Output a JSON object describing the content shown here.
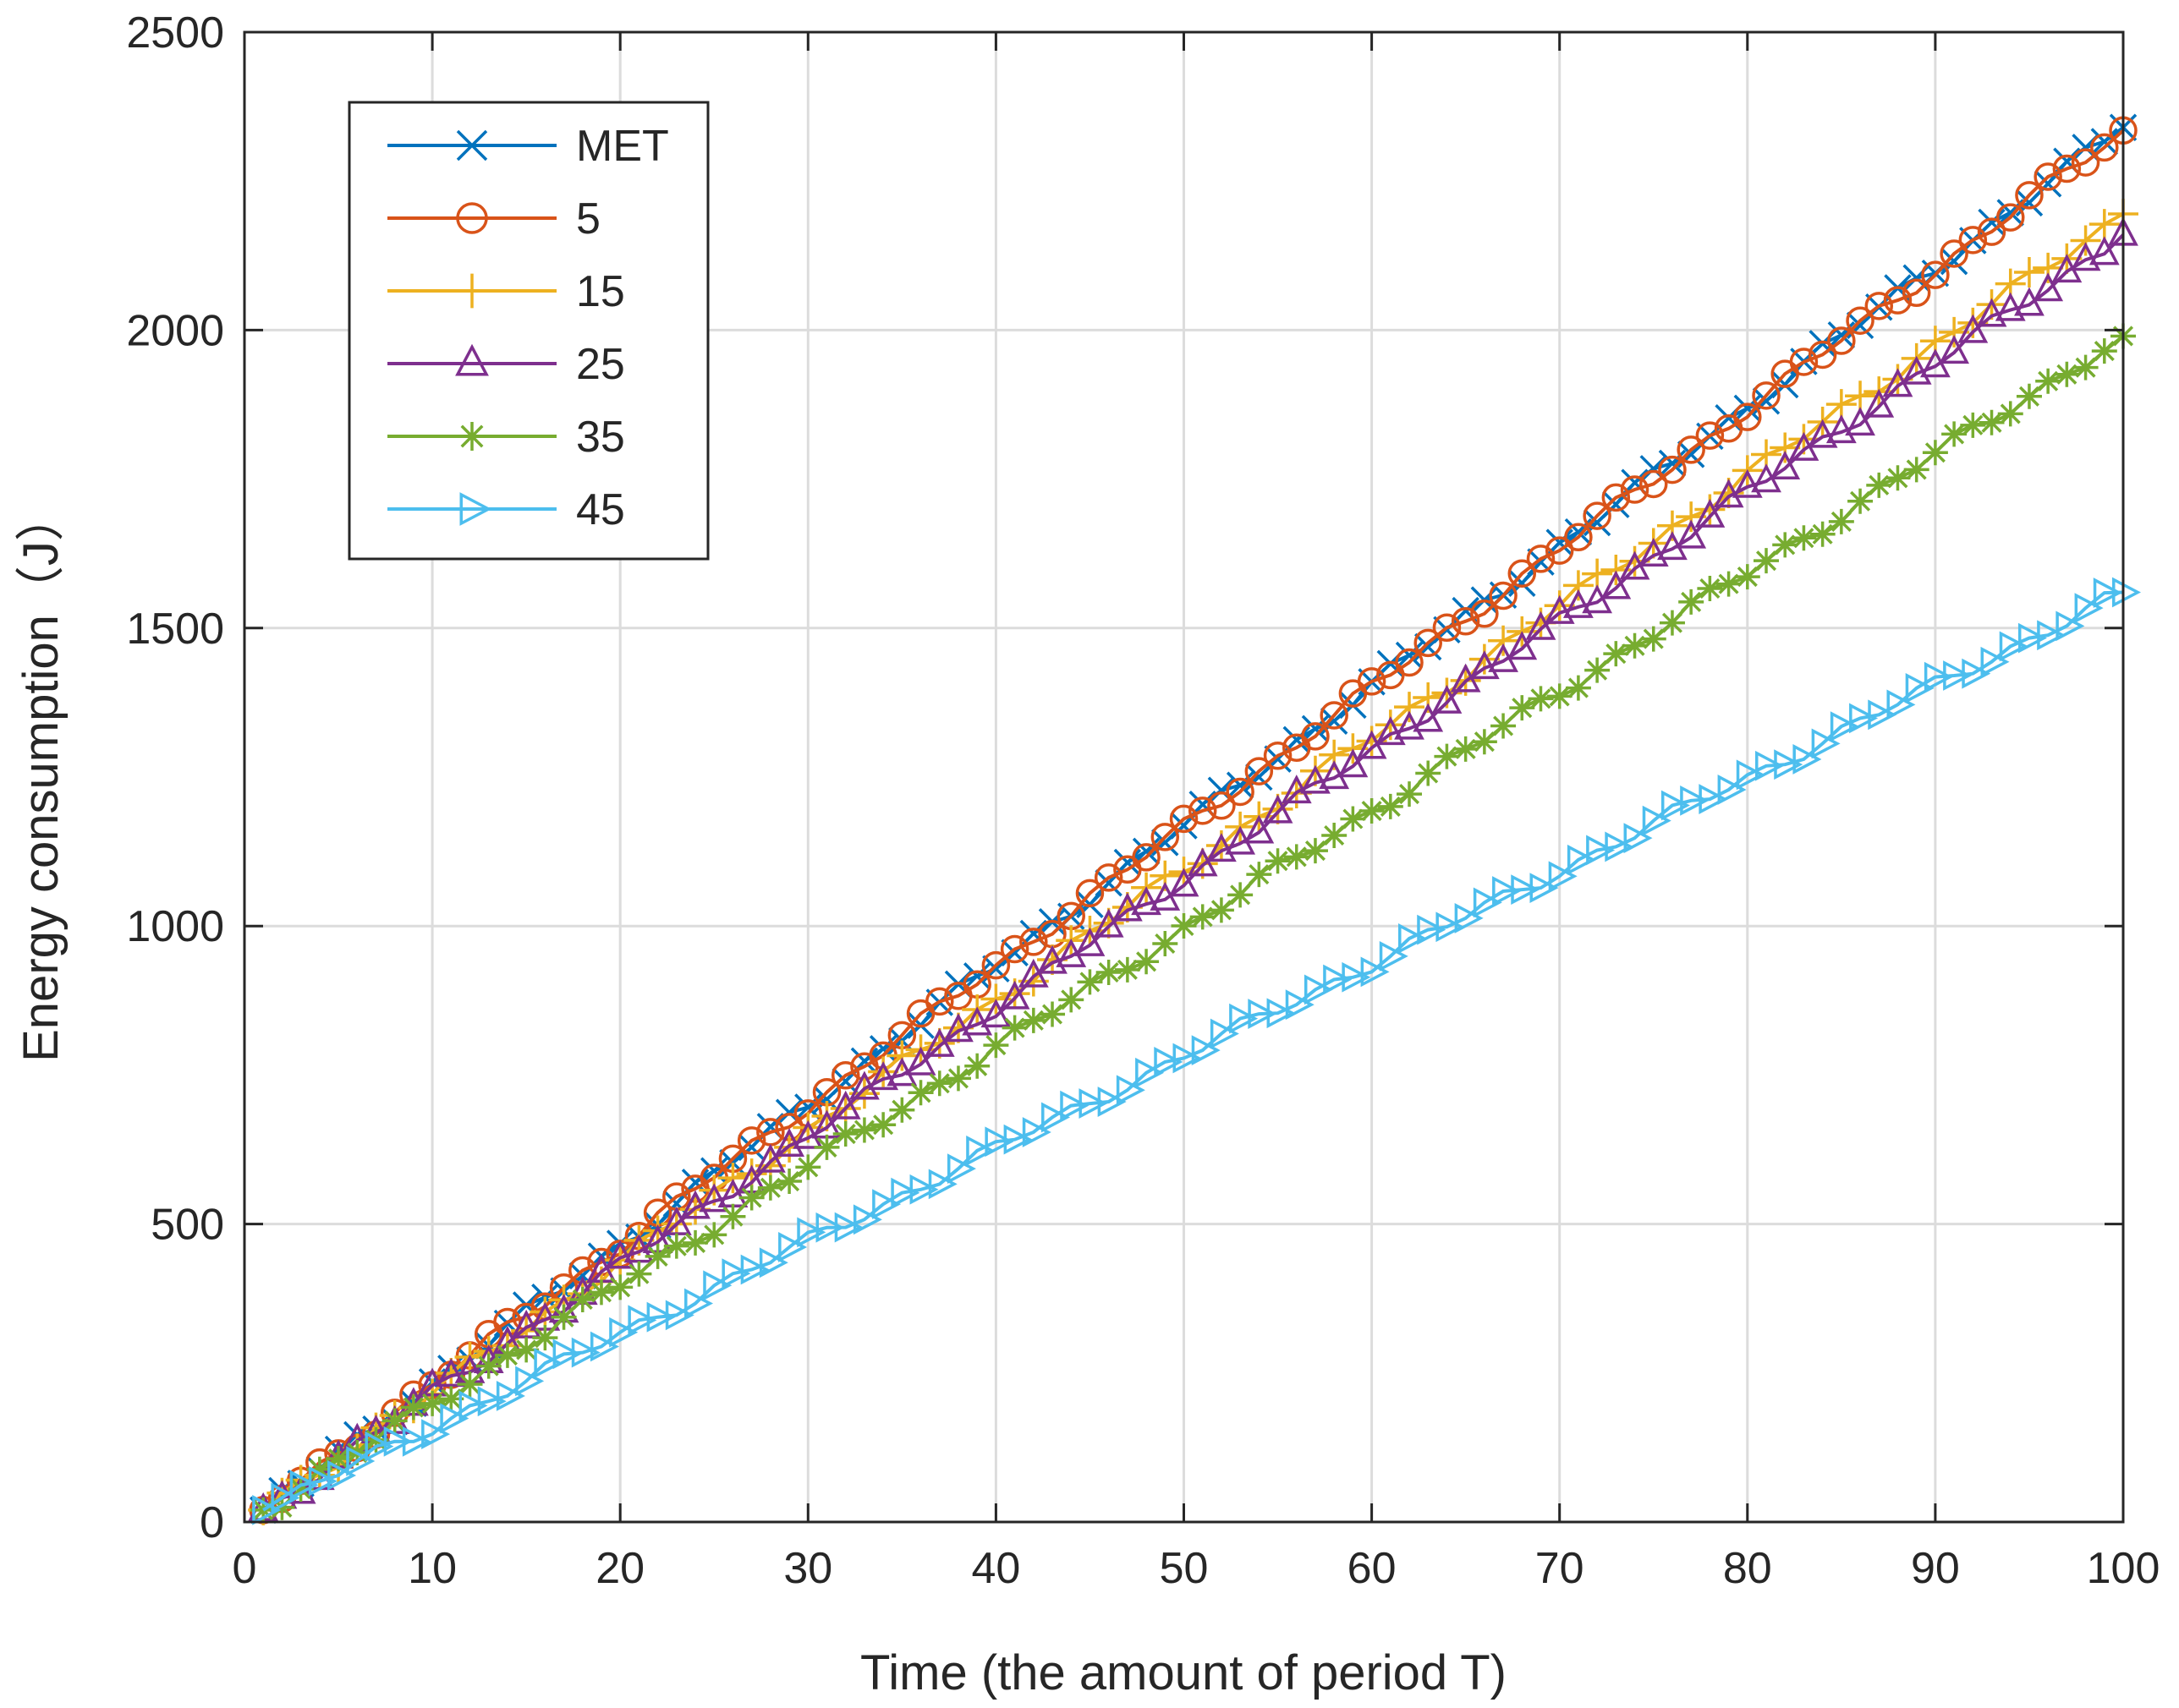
{
  "chart_data": {
    "type": "line",
    "title": "",
    "xlabel": "Time (the amount of period T)",
    "ylabel": "Energy consumption（J）",
    "xlim": [
      0,
      100
    ],
    "ylim": [
      0,
      2500
    ],
    "grid": true,
    "legend_position": "top-left",
    "xticks": [
      0,
      10,
      20,
      30,
      40,
      50,
      60,
      70,
      80,
      90,
      100
    ],
    "yticks": [
      0,
      500,
      1000,
      1500,
      2000,
      2500
    ],
    "x_labels": [
      "0",
      "10",
      "20",
      "30",
      "40",
      "50",
      "60",
      "70",
      "80",
      "90",
      "100"
    ],
    "y_labels": [
      "0",
      "500",
      "1000",
      "1500",
      "2000",
      "2500"
    ],
    "x_start": 1,
    "x_end": 100,
    "series": [
      {
        "name": "MET",
        "color": "#0072BD",
        "marker": "x",
        "end_value": 2340
      },
      {
        "name": "5",
        "color": "#D95319",
        "marker": "o",
        "end_value": 2335
      },
      {
        "name": "15",
        "color": "#EDB120",
        "marker": "+",
        "end_value": 2195
      },
      {
        "name": "25",
        "color": "#7E2F8E",
        "marker": "triangle",
        "end_value": 2160
      },
      {
        "name": "35",
        "color": "#77AC30",
        "marker": "asterisk",
        "end_value": 1990
      },
      {
        "name": "45",
        "color": "#4DBEEE",
        "marker": "triangle-right",
        "end_value": 1560
      }
    ]
  }
}
